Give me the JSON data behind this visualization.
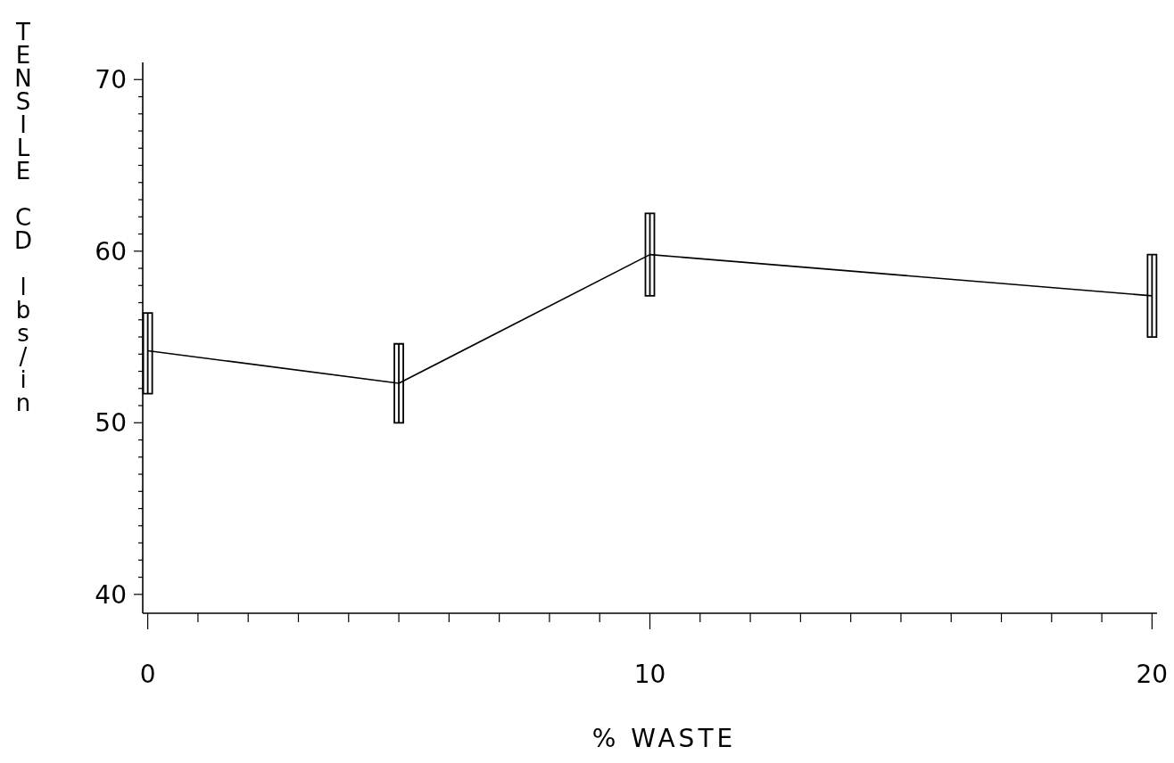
{
  "chart_data": {
    "type": "line",
    "xlabel": "% WASTE",
    "ylabel": "TENSILE CD lbs/in",
    "x": [
      0,
      5,
      10,
      20
    ],
    "series": [
      {
        "color": "#000000",
        "values": [
          54.2,
          52.3,
          59.8,
          57.4
        ],
        "errors": [
          [
            51.7,
            56.4
          ],
          [
            50.0,
            54.6
          ],
          [
            57.4,
            62.2
          ],
          [
            55.0,
            59.8
          ]
        ]
      }
    ],
    "xlim": [
      -0.1,
      20.1
    ],
    "ylim": [
      38.9,
      71
    ],
    "xticks": [
      0,
      {
        "value": 1,
        "label": null
      },
      {
        "value": 2,
        "label": null
      },
      {
        "value": 3,
        "label": null
      },
      {
        "value": 4,
        "label": null
      },
      {
        "value": 5,
        "label": null
      },
      {
        "value": 6,
        "label": null
      },
      {
        "value": 7,
        "label": null
      },
      {
        "value": 8,
        "label": null
      },
      {
        "value": 9,
        "label": null
      },
      10,
      {
        "value": 11,
        "label": null
      },
      {
        "value": 12,
        "label": null
      },
      {
        "value": 13,
        "label": null
      },
      {
        "value": 14,
        "label": null
      },
      {
        "value": 15,
        "label": null
      },
      {
        "value": 16,
        "label": null
      },
      {
        "value": 17,
        "label": null
      },
      {
        "value": 18,
        "label": null
      },
      {
        "value": 19,
        "label": null
      },
      20
    ],
    "yticks": [
      40,
      {
        "value": 41,
        "label": null
      },
      {
        "value": 42,
        "label": null
      },
      {
        "value": 43,
        "label": null
      },
      {
        "value": 44,
        "label": null
      },
      {
        "value": 45,
        "label": null
      },
      {
        "value": 46,
        "label": null
      },
      {
        "value": 47,
        "label": null
      },
      {
        "value": 48,
        "label": null
      },
      {
        "value": 49,
        "label": null
      },
      50,
      {
        "value": 51,
        "label": null
      },
      {
        "value": 52,
        "label": null
      },
      {
        "value": 53,
        "label": null
      },
      {
        "value": 54,
        "label": null
      },
      {
        "value": 55,
        "label": null
      },
      {
        "value": 56,
        "label": null
      },
      {
        "value": 57,
        "label": null
      },
      {
        "value": 58,
        "label": null
      },
      {
        "value": 59,
        "label": null
      },
      60,
      {
        "value": 61,
        "label": null
      },
      {
        "value": 62,
        "label": null
      },
      {
        "value": 63,
        "label": null
      },
      {
        "value": 64,
        "label": null
      },
      {
        "value": 65,
        "label": null
      },
      {
        "value": 66,
        "label": null
      },
      {
        "value": 67,
        "label": null
      },
      {
        "value": 68,
        "label": null
      },
      {
        "value": 69,
        "label": null
      },
      70
    ],
    "grid": false,
    "marker": "none",
    "line_style": "solid"
  }
}
